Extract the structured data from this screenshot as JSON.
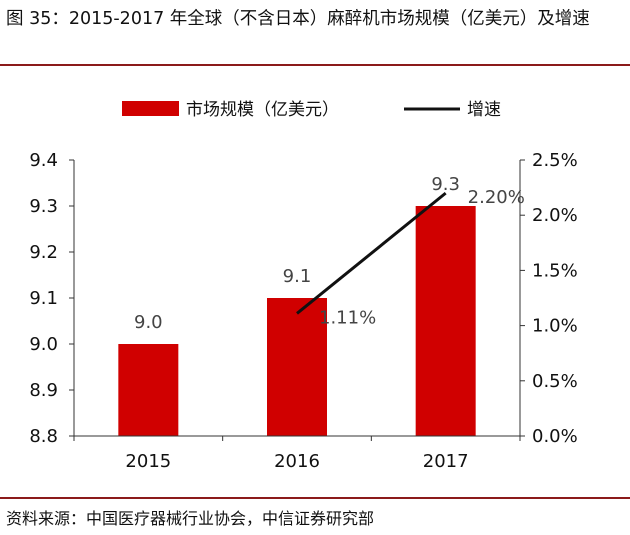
{
  "figure": {
    "title": "图 35：2015-2017 年全球（不含日本）麻醉机市场规模（亿美元）及增速",
    "source": "资料来源：中国医疗器械行业协会，中信证券研究部",
    "colors": {
      "bar": "#d00000",
      "line": "#111111",
      "rule": "#8b1a1a"
    }
  },
  "chart_data": {
    "type": "bar",
    "categories": [
      "2015",
      "2016",
      "2017"
    ],
    "series": [
      {
        "name": "市场规模（亿美元）",
        "type": "bar",
        "axis": "left",
        "values": [
          9.0,
          9.1,
          9.3
        ],
        "labels": [
          "9.0",
          "9.1",
          "9.3"
        ]
      },
      {
        "name": "增速",
        "type": "line",
        "axis": "right",
        "values": [
          null,
          0.0111,
          0.022
        ],
        "labels": [
          "",
          "1.11%",
          "2.20%"
        ]
      }
    ],
    "y_left": {
      "lim": [
        8.8,
        9.4
      ],
      "ticks": [
        "8.8",
        "8.9",
        "9.0",
        "9.1",
        "9.2",
        "9.3",
        "9.4"
      ]
    },
    "y_right": {
      "lim": [
        0,
        0.025
      ],
      "ticks": [
        "0.0%",
        "0.5%",
        "1.0%",
        "1.5%",
        "2.0%",
        "2.5%"
      ]
    },
    "legend": "top-center",
    "grid": false
  }
}
